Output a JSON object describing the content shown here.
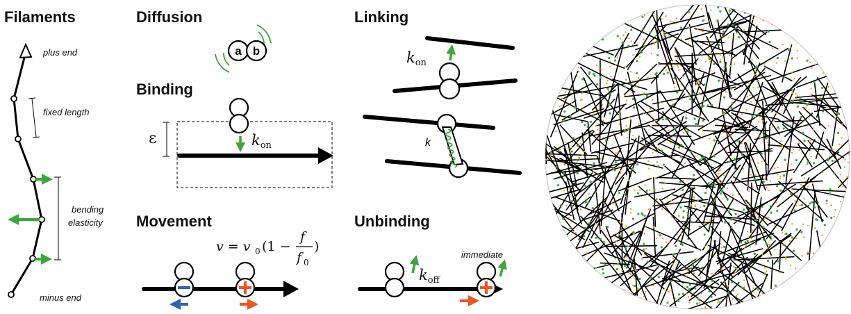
{
  "colors": {
    "green": "#3ca63c",
    "blue": "#2f63b5",
    "red": "#ee5522",
    "black": "#000000",
    "orange_dot": "#e8a020"
  },
  "panels": {
    "filaments": {
      "title": "Filaments",
      "plus_end": "plus end",
      "fixed_length": "fixed length",
      "bending": "bending",
      "elasticity": "elasticity",
      "minus_end": "minus end"
    },
    "diffusion": {
      "title": "Diffusion",
      "label_a": "a",
      "label_b": "b"
    },
    "binding": {
      "title": "Binding",
      "epsilon": "ε",
      "k": "k",
      "k_sub": "on"
    },
    "linking": {
      "title": "Linking",
      "k": "k",
      "k_sub": "on",
      "spring_k": "k"
    },
    "movement": {
      "title": "Movement",
      "eq_lhs": "v = v",
      "eq_sub": "0",
      "eq_mid": "(1 −",
      "frac_num": "f",
      "frac_den": "f",
      "frac_den_sub": "0",
      "eq_close": ")"
    },
    "unbinding": {
      "title": "Unbinding",
      "k": "k",
      "k_sub": "off",
      "immediate": "immediate"
    }
  }
}
